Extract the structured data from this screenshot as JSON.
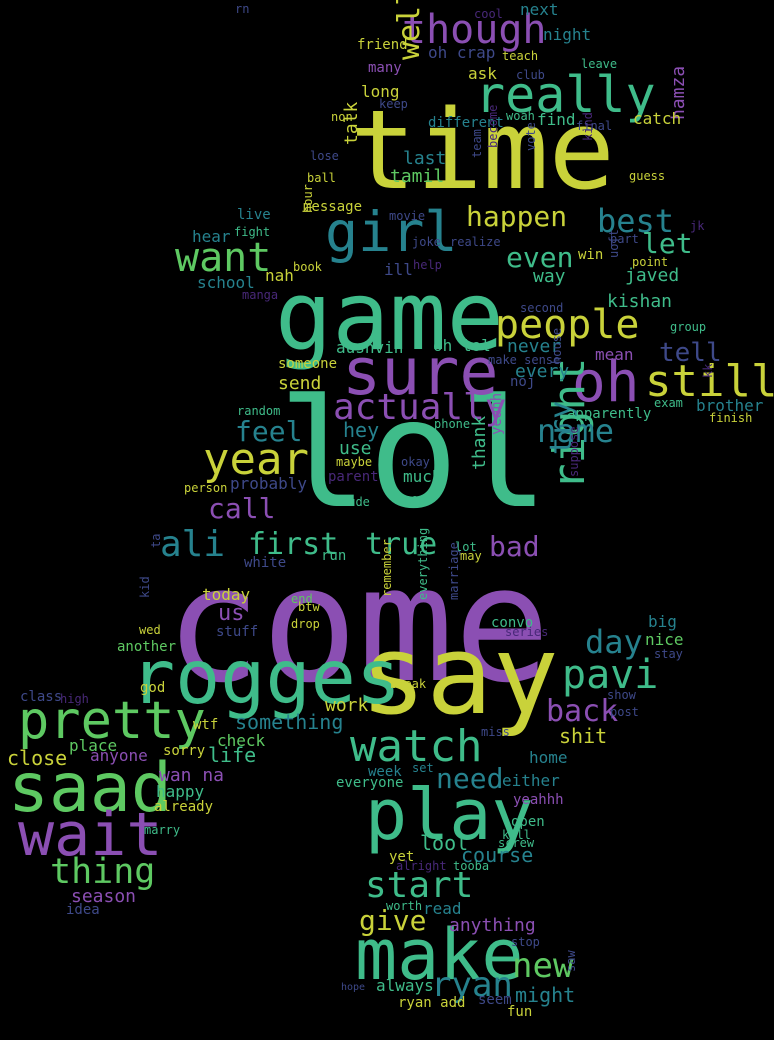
{
  "palette": {
    "background": "#000000",
    "colors": [
      "#440154",
      "#482878",
      "#3e4989",
      "#31688e",
      "#26828e",
      "#1f9e89",
      "#35b779",
      "#6ece58",
      "#b5de2b",
      "#fde725",
      "#8b4fb3",
      "#c9d23a",
      "#5ec962",
      "#3fbc8a"
    ]
  },
  "words": [
    {
      "text": "come",
      "color": "#8b4fb3"
    },
    {
      "text": "lol",
      "color": "#3fbc8a"
    },
    {
      "text": "time",
      "color": "#c9d23a"
    },
    {
      "text": "game",
      "color": "#3fbc8a"
    },
    {
      "text": "say",
      "color": "#c9d23a"
    },
    {
      "text": "rogges",
      "color": "#3fbc8a"
    },
    {
      "text": "make",
      "color": "#3fbc8a"
    },
    {
      "text": "play",
      "color": "#3fbc8a"
    },
    {
      "text": "saad",
      "color": "#5ec962"
    },
    {
      "text": "wait",
      "color": "#8b4fb3"
    },
    {
      "text": "sure",
      "color": "#8b4fb3"
    },
    {
      "text": "oh",
      "color": "#8b4fb3"
    },
    {
      "text": "pretty",
      "color": "#5ec962"
    },
    {
      "text": "girl",
      "color": "#26828e"
    },
    {
      "text": "really",
      "color": "#3fbc8a"
    },
    {
      "text": "though",
      "color": "#8b4fb3"
    },
    {
      "text": "people",
      "color": "#c9d23a"
    },
    {
      "text": "watch",
      "color": "#3fbc8a"
    },
    {
      "text": "year",
      "color": "#c9d23a"
    },
    {
      "text": "want",
      "color": "#5ec962"
    },
    {
      "text": "still",
      "color": "#c9d23a"
    },
    {
      "text": "pavi",
      "color": "#3fbc8a"
    },
    {
      "text": "right",
      "color": "#3fbc8a"
    },
    {
      "text": "actually",
      "color": "#8b4fb3"
    },
    {
      "text": "thing",
      "color": "#5ec962"
    },
    {
      "text": "start",
      "color": "#3fbc8a"
    },
    {
      "text": "ryan",
      "color": "#26828e"
    },
    {
      "text": "new",
      "color": "#5ec962"
    },
    {
      "text": "name",
      "color": "#26828e"
    },
    {
      "text": "best",
      "color": "#26828e"
    },
    {
      "text": "ali",
      "color": "#26828e"
    },
    {
      "text": "day",
      "color": "#26828e"
    },
    {
      "text": "back",
      "color": "#8b4fb3"
    },
    {
      "text": "true",
      "color": "#3fbc8a"
    },
    {
      "text": "first",
      "color": "#3fbc8a"
    },
    {
      "text": "try",
      "color": "#26828e"
    },
    {
      "text": "well",
      "color": "#c9d23a"
    },
    {
      "text": "happen",
      "color": "#c9d23a"
    },
    {
      "text": "let",
      "color": "#3fbc8a"
    },
    {
      "text": "even",
      "color": "#3fbc8a"
    },
    {
      "text": "feel",
      "color": "#26828e"
    },
    {
      "text": "call",
      "color": "#8b4fb3"
    },
    {
      "text": "bad",
      "color": "#8b4fb3"
    },
    {
      "text": "give",
      "color": "#c9d23a"
    },
    {
      "text": "need",
      "color": "#26828e"
    },
    {
      "text": "tell",
      "color": "#3e4989"
    },
    {
      "text": "something",
      "color": "#26828e"
    },
    {
      "text": "might",
      "color": "#26828e"
    },
    {
      "text": "lool",
      "color": "#3fbc8a"
    },
    {
      "text": "us",
      "color": "#8b4fb3"
    },
    {
      "text": "shit",
      "color": "#c9d23a"
    },
    {
      "text": "course",
      "color": "#26828e"
    },
    {
      "text": "hey",
      "color": "#26828e"
    },
    {
      "text": "work",
      "color": "#c9d23a"
    },
    {
      "text": "life",
      "color": "#3fbc8a"
    },
    {
      "text": "close",
      "color": "#c9d23a"
    },
    {
      "text": "season",
      "color": "#8b4fb3"
    },
    {
      "text": "anything",
      "color": "#8b4fb3"
    },
    {
      "text": "wan na",
      "color": "#8b4fb3"
    },
    {
      "text": "place",
      "color": "#5ec962"
    },
    {
      "text": "kishan",
      "color": "#3fbc8a"
    },
    {
      "text": "javed",
      "color": "#3fbc8a"
    },
    {
      "text": "last",
      "color": "#26828e"
    },
    {
      "text": "tamil",
      "color": "#5ec962"
    },
    {
      "text": "talk",
      "color": "#c9d23a"
    },
    {
      "text": "hamza",
      "color": "#8b4fb3"
    },
    {
      "text": "catch",
      "color": "#c9d23a"
    },
    {
      "text": "next",
      "color": "#26828e"
    },
    {
      "text": "night",
      "color": "#26828e"
    },
    {
      "text": "friend",
      "color": "#c9d23a"
    },
    {
      "text": "oh crap",
      "color": "#3e4989"
    },
    {
      "text": "long",
      "color": "#c9d23a"
    },
    {
      "text": "ask",
      "color": "#c9d23a"
    },
    {
      "text": "find",
      "color": "#3fbc8a"
    },
    {
      "text": "different",
      "color": "#26828e"
    },
    {
      "text": "way",
      "color": "#3fbc8a"
    },
    {
      "text": "win",
      "color": "#c9d23a"
    },
    {
      "text": "never",
      "color": "#26828e"
    },
    {
      "text": "oh lol",
      "color": "#3fbc8a"
    },
    {
      "text": "aushvin",
      "color": "#3fbc8a"
    },
    {
      "text": "mean",
      "color": "#8b4fb3"
    },
    {
      "text": "every",
      "color": "#26828e"
    },
    {
      "text": "noj",
      "color": "#3e4989"
    },
    {
      "text": "brother",
      "color": "#26828e"
    },
    {
      "text": "apparently",
      "color": "#3fbc8a"
    },
    {
      "text": "send",
      "color": "#c9d23a"
    },
    {
      "text": "use",
      "color": "#3fbc8a"
    },
    {
      "text": "thank",
      "color": "#3fbc8a"
    },
    {
      "text": "much",
      "color": "#3fbc8a"
    },
    {
      "text": "yeahh",
      "color": "#8b4fb3"
    },
    {
      "text": "probably",
      "color": "#3e4989"
    },
    {
      "text": "school",
      "color": "#26828e"
    },
    {
      "text": "hear",
      "color": "#26828e"
    },
    {
      "text": "message",
      "color": "#c9d23a"
    },
    {
      "text": "ill",
      "color": "#3e4989"
    },
    {
      "text": "nah",
      "color": "#c9d23a"
    },
    {
      "text": "today",
      "color": "#c9d23a"
    },
    {
      "text": "stuff",
      "color": "#3e4989"
    },
    {
      "text": "another",
      "color": "#5ec962"
    },
    {
      "text": "god",
      "color": "#c9d23a"
    },
    {
      "text": "wtf",
      "color": "#c9d23a"
    },
    {
      "text": "check",
      "color": "#5ec962"
    },
    {
      "text": "anyone",
      "color": "#8b4fb3"
    },
    {
      "text": "sorry",
      "color": "#c9d23a"
    },
    {
      "text": "happy",
      "color": "#3fbc8a"
    },
    {
      "text": "already",
      "color": "#c9d23a"
    },
    {
      "text": "home",
      "color": "#26828e"
    },
    {
      "text": "week",
      "color": "#26828e"
    },
    {
      "text": "either",
      "color": "#26828e"
    },
    {
      "text": "yeahhh",
      "color": "#8b4fb3"
    },
    {
      "text": "everyone",
      "color": "#3fbc8a"
    },
    {
      "text": "open",
      "color": "#3fbc8a"
    },
    {
      "text": "yet",
      "color": "#c9d23a"
    },
    {
      "text": "read",
      "color": "#26828e"
    },
    {
      "text": "always",
      "color": "#3fbc8a"
    },
    {
      "text": "big",
      "color": "#26828e"
    },
    {
      "text": "nice",
      "color": "#5ec962"
    },
    {
      "text": "convo",
      "color": "#3fbc8a"
    },
    {
      "text": "idea",
      "color": "#3e4989"
    },
    {
      "text": "ryan add",
      "color": "#c9d23a"
    },
    {
      "text": "seem",
      "color": "#3e4989"
    },
    {
      "text": "fun",
      "color": "#c9d23a"
    },
    {
      "text": "stop",
      "color": "#3e4989"
    },
    {
      "text": "saw",
      "color": "#3e4989"
    },
    {
      "text": "hope",
      "color": "#3e4989"
    },
    {
      "text": "worth",
      "color": "#3fbc8a"
    },
    {
      "text": "tooba",
      "color": "#3fbc8a"
    },
    {
      "text": "alright",
      "color": "#482878"
    },
    {
      "text": "screw",
      "color": "#3fbc8a"
    },
    {
      "text": "kill",
      "color": "#3fbc8a"
    },
    {
      "text": "marry",
      "color": "#3fbc8a"
    },
    {
      "text": "set",
      "color": "#26828e"
    },
    {
      "text": "miss",
      "color": "#3e4989"
    },
    {
      "text": "break",
      "color": "#c9d23a"
    },
    {
      "text": "show",
      "color": "#3e4989"
    },
    {
      "text": "post",
      "color": "#3e4989"
    },
    {
      "text": "stay",
      "color": "#3e4989"
    },
    {
      "text": "series",
      "color": "#482878"
    },
    {
      "text": "marriage",
      "color": "#3e4989"
    },
    {
      "text": "everything",
      "color": "#3fbc8a"
    },
    {
      "text": "remember",
      "color": "#c9d23a"
    },
    {
      "text": "drop",
      "color": "#c9d23a"
    },
    {
      "text": "end",
      "color": "#5ec962"
    },
    {
      "text": "btw",
      "color": "#c9d23a"
    },
    {
      "text": "wed",
      "color": "#c9d23a"
    },
    {
      "text": "kid",
      "color": "#3e4989"
    },
    {
      "text": "class",
      "color": "#3e4989"
    },
    {
      "text": "high",
      "color": "#482878"
    },
    {
      "text": "white",
      "color": "#3e4989"
    },
    {
      "text": "run",
      "color": "#3fbc8a"
    },
    {
      "text": "ta",
      "color": "#3e4989"
    },
    {
      "text": "lot",
      "color": "#3fbc8a"
    },
    {
      "text": "may",
      "color": "#c9d23a"
    },
    {
      "text": "suppose",
      "color": "#482878"
    },
    {
      "text": "nope",
      "color": "#3fbc8a"
    },
    {
      "text": "okay",
      "color": "#3e4989"
    },
    {
      "text": "dude",
      "color": "#3fbc8a"
    },
    {
      "text": "parent",
      "color": "#482878"
    },
    {
      "text": "maybe",
      "color": "#c9d23a"
    },
    {
      "text": "person",
      "color": "#c9d23a"
    },
    {
      "text": "phone",
      "color": "#3fbc8a"
    },
    {
      "text": "random",
      "color": "#3fbc8a"
    },
    {
      "text": "someone",
      "color": "#c9d23a"
    },
    {
      "text": "make sense",
      "color": "#3e4989"
    },
    {
      "text": "house",
      "color": "#3e4989"
    },
    {
      "text": "exam",
      "color": "#3fbc8a"
    },
    {
      "text": "finish",
      "color": "#c9d23a"
    },
    {
      "text": "kk",
      "color": "#482878"
    },
    {
      "text": "second",
      "color": "#3e4989"
    },
    {
      "text": "group",
      "color": "#3fbc8a"
    },
    {
      "text": "manga",
      "color": "#482878"
    },
    {
      "text": "book",
      "color": "#c9d23a"
    },
    {
      "text": "help",
      "color": "#482878"
    },
    {
      "text": "point",
      "color": "#c9d23a"
    },
    {
      "text": "uoft",
      "color": "#3e4989"
    },
    {
      "text": "part",
      "color": "#3e4989"
    },
    {
      "text": "jk",
      "color": "#482878"
    },
    {
      "text": "live",
      "color": "#26828e"
    },
    {
      "text": "fight",
      "color": "#3fbc8a"
    },
    {
      "text": "movie",
      "color": "#3e4989"
    },
    {
      "text": "hour",
      "color": "#c9d23a"
    },
    {
      "text": "joke",
      "color": "#3e4989"
    },
    {
      "text": "realize",
      "color": "#3e4989"
    },
    {
      "text": "lose",
      "color": "#3e4989"
    },
    {
      "text": "ball",
      "color": "#c9d23a"
    },
    {
      "text": "team",
      "color": "#3e4989"
    },
    {
      "text": "become",
      "color": "#482878"
    },
    {
      "text": "vote",
      "color": "#3e4989"
    },
    {
      "text": "guess",
      "color": "#c9d23a"
    },
    {
      "text": "kind",
      "color": "#482878"
    },
    {
      "text": "final",
      "color": "#3e4989"
    },
    {
      "text": "non",
      "color": "#c9d23a"
    },
    {
      "text": "keep",
      "color": "#3e4989"
    },
    {
      "text": "woah",
      "color": "#3fbc8a"
    },
    {
      "text": "club",
      "color": "#3e4989"
    },
    {
      "text": "leave",
      "color": "#3fbc8a"
    },
    {
      "text": "many",
      "color": "#8b4fb3"
    },
    {
      "text": "teach",
      "color": "#c9d23a"
    },
    {
      "text": "cool",
      "color": "#482878"
    },
    {
      "text": "rn",
      "color": "#3e4989"
    }
  ]
}
